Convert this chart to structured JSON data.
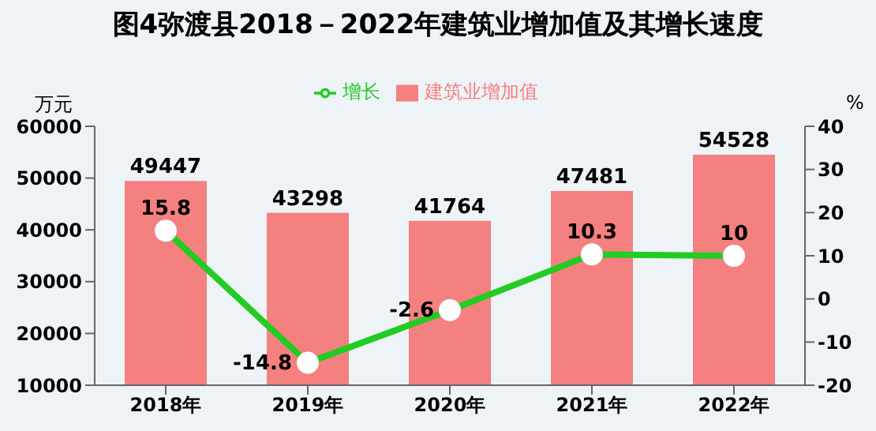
{
  "chart_data": {
    "type": "bar",
    "title": "图4弥渡县2018－2022年建筑业增加值及其增长速度",
    "categories": [
      "2018年",
      "2019年",
      "2020年",
      "2021年",
      "2022年"
    ],
    "series": [
      {
        "name": "建筑业增加值",
        "color": "#f4817f",
        "values": [
          49447,
          43298,
          41764,
          47481,
          54528
        ]
      },
      {
        "name": "增长",
        "type": "line",
        "axis": "y2",
        "color": "#22cc22",
        "values": [
          15.8,
          -14.8,
          -2.6,
          10.3,
          10
        ]
      }
    ],
    "ylabel": "万元",
    "y2label": "%",
    "ylim": [
      10000,
      60000
    ],
    "yticks": [
      10000,
      20000,
      30000,
      40000,
      50000,
      60000
    ],
    "y2lim": [
      -20,
      40
    ],
    "y2ticks": [
      -20,
      -10,
      0,
      10,
      20,
      30,
      40
    ],
    "data_labels": true,
    "legend": "top",
    "marker": "circle",
    "grid": false
  }
}
